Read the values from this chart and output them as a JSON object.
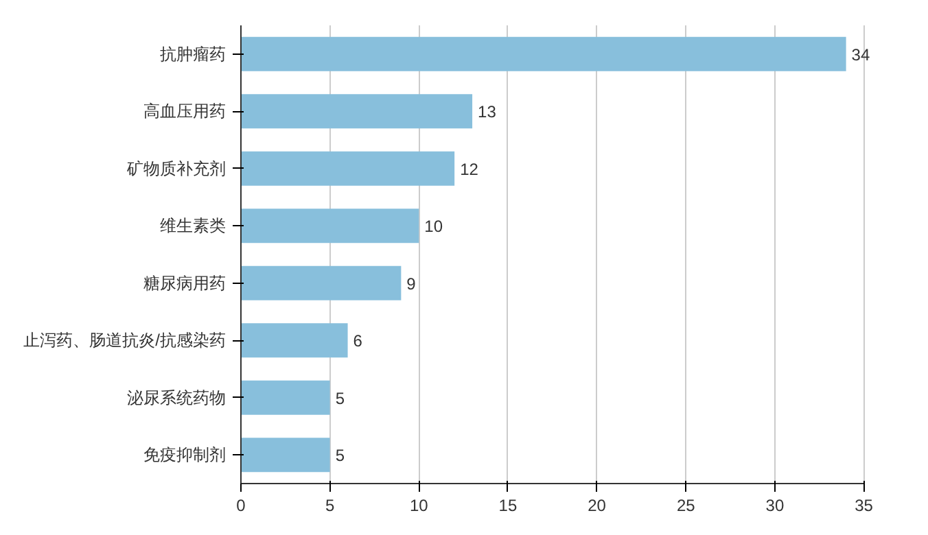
{
  "chart_data": {
    "type": "bar",
    "orientation": "horizontal",
    "categories": [
      "抗肿瘤药",
      "高血压用药",
      "矿物质补充剂",
      "维生素类",
      "糖尿病用药",
      "止泻药、肠道抗炎/抗感染药",
      "泌尿系统药物",
      "免疫抑制剂"
    ],
    "values": [
      34,
      13,
      12,
      10,
      9,
      6,
      5,
      5
    ],
    "color": "#88bfdc",
    "xlim": [
      0,
      35
    ],
    "xticks": [
      0,
      5,
      10,
      15,
      20,
      25,
      30,
      35
    ],
    "grid": "x",
    "data_labels": true
  }
}
